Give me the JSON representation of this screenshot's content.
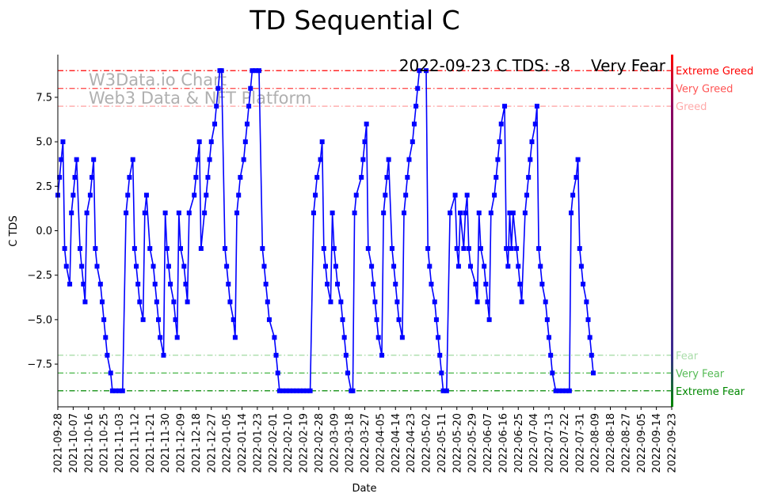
{
  "chart_data": {
    "type": "line",
    "title": "TD Sequential C",
    "xlabel": "Date",
    "ylabel": "C TDS",
    "ylim": [
      -9.9,
      9.9
    ],
    "y_ticks": [
      -7.5,
      -5.0,
      -2.5,
      0.0,
      2.5,
      5.0,
      7.5
    ],
    "y_tick_labels": [
      "−7.5",
      "−5.0",
      "−2.5",
      "0.0",
      "2.5",
      "5.0",
      "7.5"
    ],
    "x_tick_labels": [
      "2021-09-28",
      "2021-10-07",
      "2021-10-16",
      "2021-10-25",
      "2021-11-03",
      "2021-11-12",
      "2021-11-21",
      "2021-11-30",
      "2021-12-09",
      "2021-12-18",
      "2021-12-27",
      "2022-01-05",
      "2022-01-14",
      "2022-01-23",
      "2022-02-01",
      "2022-02-10",
      "2022-02-19",
      "2022-02-28",
      "2022-03-09",
      "2022-03-18",
      "2022-03-27",
      "2022-04-05",
      "2022-04-14",
      "2022-04-23",
      "2022-05-02",
      "2022-05-11",
      "2022-05-20",
      "2022-05-29",
      "2022-06-07",
      "2022-06-16",
      "2022-06-25",
      "2022-07-04",
      "2022-07-13",
      "2022-07-22",
      "2022-07-31",
      "2022-08-09",
      "2022-08-18",
      "2022-08-27",
      "2022-09-05",
      "2022-09-14",
      "2022-09-23"
    ],
    "x_tick_day_indices": [
      0,
      9,
      18,
      27,
      36,
      45,
      54,
      63,
      72,
      81,
      90,
      99,
      108,
      117,
      126,
      135,
      144,
      153,
      162,
      171,
      180,
      189,
      198,
      207,
      216,
      225,
      234,
      243,
      252,
      261,
      270,
      279,
      288,
      297,
      306,
      315,
      324,
      333,
      342,
      351,
      360
    ],
    "series": [
      {
        "name": "C TDS",
        "color": "#0000ff",
        "marker": "square",
        "points": [
          [
            0,
            2
          ],
          [
            1,
            3
          ],
          [
            2,
            4
          ],
          [
            3,
            5
          ],
          [
            4,
            -1
          ],
          [
            5,
            -2
          ],
          [
            7,
            -3
          ],
          [
            8,
            1
          ],
          [
            9,
            2
          ],
          [
            10,
            3
          ],
          [
            11,
            4
          ],
          [
            13,
            -1
          ],
          [
            14,
            -2
          ],
          [
            15,
            -3
          ],
          [
            16,
            -4
          ],
          [
            17,
            1
          ],
          [
            19,
            2
          ],
          [
            20,
            3
          ],
          [
            21,
            4
          ],
          [
            22,
            -1
          ],
          [
            23,
            -2
          ],
          [
            25,
            -3
          ],
          [
            26,
            -4
          ],
          [
            27,
            -5
          ],
          [
            28,
            -6
          ],
          [
            29,
            -7
          ],
          [
            31,
            -8
          ],
          [
            32,
            -9
          ],
          [
            34,
            -9
          ],
          [
            36,
            -9
          ],
          [
            38,
            -9
          ],
          [
            40,
            1
          ],
          [
            41,
            2
          ],
          [
            42,
            3
          ],
          [
            44,
            4
          ],
          [
            45,
            -1
          ],
          [
            46,
            -2
          ],
          [
            47,
            -3
          ],
          [
            48,
            -4
          ],
          [
            50,
            -5
          ],
          [
            51,
            1
          ],
          [
            52,
            2
          ],
          [
            54,
            -1
          ],
          [
            56,
            -2
          ],
          [
            57,
            -3
          ],
          [
            58,
            -4
          ],
          [
            59,
            -5
          ],
          [
            60,
            -6
          ],
          [
            62,
            -7
          ],
          [
            63,
            1
          ],
          [
            64,
            -1
          ],
          [
            65,
            -2
          ],
          [
            66,
            -3
          ],
          [
            68,
            -4
          ],
          [
            69,
            -5
          ],
          [
            70,
            -6
          ],
          [
            71,
            1
          ],
          [
            72,
            -1
          ],
          [
            74,
            -2
          ],
          [
            75,
            -3
          ],
          [
            76,
            -4
          ],
          [
            77,
            1
          ],
          [
            80,
            2
          ],
          [
            81,
            3
          ],
          [
            82,
            4
          ],
          [
            83,
            5
          ],
          [
            84,
            -1
          ],
          [
            86,
            1
          ],
          [
            87,
            2
          ],
          [
            88,
            3
          ],
          [
            89,
            4
          ],
          [
            90,
            5
          ],
          [
            92,
            6
          ],
          [
            93,
            7
          ],
          [
            94,
            8
          ],
          [
            95,
            9
          ],
          [
            96,
            9
          ],
          [
            98,
            -1
          ],
          [
            99,
            -2
          ],
          [
            100,
            -3
          ],
          [
            101,
            -4
          ],
          [
            103,
            -5
          ],
          [
            104,
            -6
          ],
          [
            105,
            1
          ],
          [
            106,
            2
          ],
          [
            107,
            3
          ],
          [
            109,
            4
          ],
          [
            110,
            5
          ],
          [
            111,
            6
          ],
          [
            112,
            7
          ],
          [
            113,
            8
          ],
          [
            114,
            9
          ],
          [
            116,
            9
          ],
          [
            118,
            9
          ],
          [
            120,
            -1
          ],
          [
            121,
            -2
          ],
          [
            122,
            -3
          ],
          [
            123,
            -4
          ],
          [
            124,
            -5
          ],
          [
            127,
            -6
          ],
          [
            128,
            -7
          ],
          [
            129,
            -8
          ],
          [
            130,
            -9
          ],
          [
            132,
            -9
          ],
          [
            134,
            -9
          ],
          [
            136,
            -9
          ],
          [
            138,
            -9
          ],
          [
            140,
            -9
          ],
          [
            142,
            -9
          ],
          [
            144,
            -9
          ],
          [
            146,
            -9
          ],
          [
            148,
            -9
          ],
          [
            150,
            1
          ],
          [
            151,
            2
          ],
          [
            152,
            3
          ],
          [
            154,
            4
          ],
          [
            155,
            5
          ],
          [
            156,
            -1
          ],
          [
            157,
            -2
          ],
          [
            158,
            -3
          ],
          [
            160,
            -4
          ],
          [
            161,
            1
          ],
          [
            162,
            -1
          ],
          [
            163,
            -2
          ],
          [
            164,
            -3
          ],
          [
            166,
            -4
          ],
          [
            167,
            -5
          ],
          [
            168,
            -6
          ],
          [
            169,
            -7
          ],
          [
            170,
            -8
          ],
          [
            172,
            -9
          ],
          [
            173,
            -9
          ],
          [
            174,
            1
          ],
          [
            175,
            2
          ],
          [
            178,
            3
          ],
          [
            179,
            4
          ],
          [
            180,
            5
          ],
          [
            181,
            6
          ],
          [
            182,
            -1
          ],
          [
            184,
            -2
          ],
          [
            185,
            -3
          ],
          [
            186,
            -4
          ],
          [
            187,
            -5
          ],
          [
            188,
            -6
          ],
          [
            190,
            -7
          ],
          [
            191,
            1
          ],
          [
            192,
            2
          ],
          [
            193,
            3
          ],
          [
            194,
            4
          ],
          [
            196,
            -1
          ],
          [
            197,
            -2
          ],
          [
            198,
            -3
          ],
          [
            199,
            -4
          ],
          [
            200,
            -5
          ],
          [
            202,
            -6
          ],
          [
            203,
            1
          ],
          [
            204,
            2
          ],
          [
            205,
            3
          ],
          [
            206,
            4
          ],
          [
            208,
            5
          ],
          [
            209,
            6
          ],
          [
            210,
            7
          ],
          [
            211,
            8
          ],
          [
            212,
            9
          ],
          [
            216,
            9
          ],
          [
            217,
            -1
          ],
          [
            218,
            -2
          ],
          [
            219,
            -3
          ],
          [
            221,
            -4
          ],
          [
            222,
            -5
          ],
          [
            223,
            -6
          ],
          [
            224,
            -7
          ],
          [
            225,
            -8
          ],
          [
            226,
            -9
          ],
          [
            228,
            -9
          ],
          [
            230,
            1
          ],
          [
            233,
            2
          ],
          [
            234,
            -1
          ],
          [
            235,
            -2
          ],
          [
            236,
            1
          ],
          [
            238,
            -1
          ],
          [
            239,
            1
          ],
          [
            240,
            2
          ],
          [
            241,
            -1
          ],
          [
            242,
            -2
          ],
          [
            245,
            -3
          ],
          [
            246,
            -4
          ],
          [
            247,
            1
          ],
          [
            248,
            -1
          ],
          [
            250,
            -2
          ],
          [
            251,
            -3
          ],
          [
            252,
            -4
          ],
          [
            253,
            -5
          ],
          [
            254,
            1
          ],
          [
            256,
            2
          ],
          [
            257,
            3
          ],
          [
            258,
            4
          ],
          [
            259,
            5
          ],
          [
            260,
            6
          ],
          [
            262,
            7
          ],
          [
            263,
            -1
          ],
          [
            264,
            -2
          ],
          [
            265,
            1
          ],
          [
            266,
            -1
          ],
          [
            267,
            1
          ],
          [
            269,
            -1
          ],
          [
            270,
            -2
          ],
          [
            271,
            -3
          ],
          [
            272,
            -4
          ],
          [
            274,
            1
          ],
          [
            275,
            2
          ],
          [
            276,
            3
          ],
          [
            277,
            4
          ],
          [
            278,
            5
          ],
          [
            280,
            6
          ],
          [
            281,
            7
          ],
          [
            282,
            -1
          ],
          [
            283,
            -2
          ],
          [
            284,
            -3
          ],
          [
            286,
            -4
          ],
          [
            287,
            -5
          ],
          [
            288,
            -6
          ],
          [
            289,
            -7
          ],
          [
            290,
            -8
          ],
          [
            292,
            -9
          ],
          [
            294,
            -9
          ],
          [
            296,
            -9
          ],
          [
            298,
            -9
          ],
          [
            300,
            -9
          ],
          [
            301,
            1
          ],
          [
            302,
            2
          ],
          [
            304,
            3
          ],
          [
            305,
            4
          ],
          [
            306,
            -1
          ],
          [
            307,
            -2
          ],
          [
            308,
            -3
          ],
          [
            310,
            -4
          ],
          [
            311,
            -5
          ],
          [
            312,
            -6
          ],
          [
            313,
            -7
          ],
          [
            314,
            -8
          ]
        ]
      }
    ],
    "reference_lines": [
      {
        "name": "Extreme Greed",
        "value": 9,
        "color": "#ff0000"
      },
      {
        "name": "Very Greed",
        "value": 8,
        "color": "#ff5555"
      },
      {
        "name": "Greed",
        "value": 7,
        "color": "#ffaaaa"
      },
      {
        "name": "Fear",
        "value": -7,
        "color": "#aaddaa"
      },
      {
        "name": "Very Fear",
        "value": -8,
        "color": "#55bb55"
      },
      {
        "name": "Extreme Fear",
        "value": -9,
        "color": "#008800"
      }
    ],
    "watermark": [
      "W3Data.io Chart",
      "Web3 Data & NFT Platform"
    ],
    "status_text": "2022-09-23 C TDS: -8",
    "status_label": "Very Fear",
    "status_label_color": "#55aa55"
  }
}
